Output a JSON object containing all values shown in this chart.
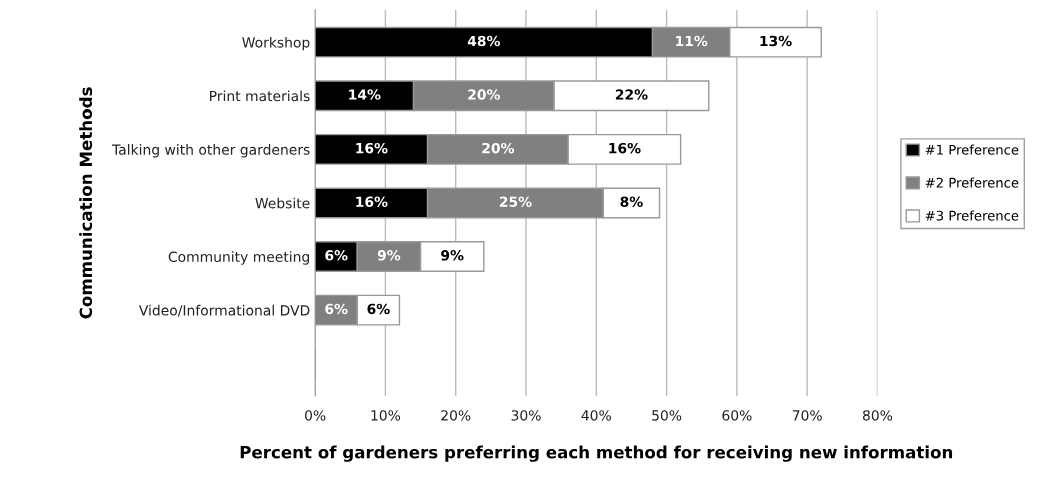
{
  "chart_data": {
    "type": "bar",
    "orientation": "horizontal",
    "stacked": true,
    "categories": [
      "Workshop",
      "Print materials",
      "Talking with other gardeners",
      "Website",
      "Community meeting",
      "Video/Informational DVD",
      null
    ],
    "series": [
      {
        "name": "#1 Preference",
        "color": "#000000",
        "values": [
          48,
          14,
          16,
          16,
          6,
          0,
          null
        ],
        "value_labels": [
          "48%",
          "14%",
          "16%",
          "16%",
          "6%",
          null,
          null
        ]
      },
      {
        "name": "#2 Preference",
        "color": "#808080",
        "values": [
          11,
          20,
          20,
          25,
          9,
          6,
          null
        ],
        "value_labels": [
          "11%",
          "20%",
          "20%",
          "25%",
          "9%",
          "6%",
          null
        ]
      },
      {
        "name": "#3 Preference",
        "color": "#ffffff",
        "values": [
          13,
          22,
          16,
          8,
          9,
          6,
          null
        ],
        "value_labels": [
          "13%",
          "22%",
          "16%",
          "8%",
          "9%",
          "6%",
          null
        ]
      }
    ],
    "xlabel": "Percent of gardeners preferring each method for receiving new information",
    "ylabel": "Communication Methods",
    "xlim": [
      0,
      80
    ],
    "xticks": [
      {
        "value": 0,
        "label": "0%"
      },
      {
        "value": 10,
        "label": "10%"
      },
      {
        "value": 20,
        "label": "20%"
      },
      {
        "value": 30,
        "label": "30%"
      },
      {
        "value": 40,
        "label": "40%"
      },
      {
        "value": 50,
        "label": "50%"
      },
      {
        "value": 60,
        "label": "60%"
      },
      {
        "value": 70,
        "label": "70%"
      },
      {
        "value": 80,
        "label": "80%"
      }
    ],
    "grid": "x",
    "legend": "right"
  }
}
